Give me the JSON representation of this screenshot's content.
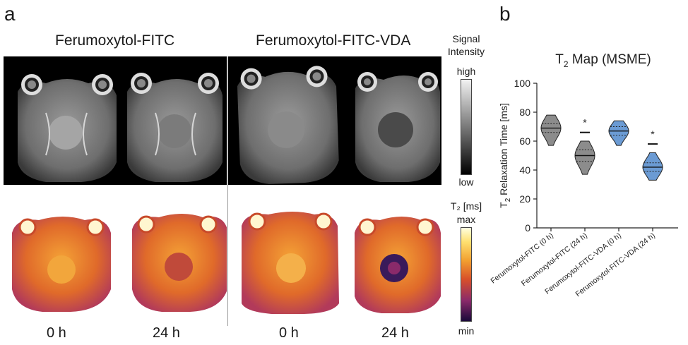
{
  "panel_a": {
    "letter": "a",
    "groups": [
      {
        "title": "Ferumoxytol-FITC",
        "times": [
          "0 h",
          "24 h"
        ]
      },
      {
        "title": "Ferumoxytol-FITC-VDA",
        "times": [
          "0 h",
          "24 h"
        ]
      }
    ],
    "signal_legend": {
      "title_line1": "Signal",
      "title_line2": "Intensity",
      "high": "high",
      "low": "low"
    },
    "t2_legend": {
      "title": "T₂ [ms]",
      "max": "max",
      "min": "min"
    }
  },
  "panel_b": {
    "letter": "b",
    "chart_data": {
      "type": "violin",
      "title": "T₂ Map (MSME)",
      "title_main": "T",
      "title_sub": "2",
      "title_rest": " Map (MSME)",
      "ylabel": "T₂ Relaxation Time [ms]",
      "ylabel_main": "T",
      "ylabel_sub": "2",
      "ylabel_rest": " Relaxation Time [ms]",
      "ylim": [
        0,
        100
      ],
      "yticks": [
        0,
        20,
        40,
        60,
        80,
        100
      ],
      "categories": [
        "Ferumoxytol-FITC (0 h)",
        "Ferumoxytol-FITC (24 h)",
        "Ferumoxytol-FITC-VDA (0 h)",
        "Ferumoxytol-FITC-VDA (24 h)"
      ],
      "series": [
        {
          "category": "Ferumoxytol-FITC (0 h)",
          "min": 57,
          "max": 78,
          "median": 69,
          "q1": 66,
          "q3": 72,
          "color": "#8c8c8c"
        },
        {
          "category": "Ferumoxytol-FITC (24 h)",
          "min": 37,
          "max": 60,
          "median": 50,
          "q1": 46,
          "q3": 54,
          "color": "#8c8c8c"
        },
        {
          "category": "Ferumoxytol-FITC-VDA (0 h)",
          "min": 57,
          "max": 74,
          "median": 67,
          "q1": 64,
          "q3": 70,
          "color": "#6b9bd4"
        },
        {
          "category": "Ferumoxytol-FITC-VDA (24 h)",
          "min": 33,
          "max": 52,
          "median": 42,
          "q1": 39,
          "q3": 45,
          "color": "#6b9bd4"
        }
      ],
      "significance": [
        {
          "category": "Ferumoxytol-FITC (24 h)",
          "bar_level": 66,
          "label": "*"
        },
        {
          "category": "Ferumoxytol-FITC-VDA (24 h)",
          "bar_level": 58,
          "label": "*"
        }
      ],
      "grid": false
    }
  },
  "colors": {
    "hot_low": "#1a0a3a",
    "hot_mid": "#c8402a",
    "hot_high": "#fff3b0"
  }
}
